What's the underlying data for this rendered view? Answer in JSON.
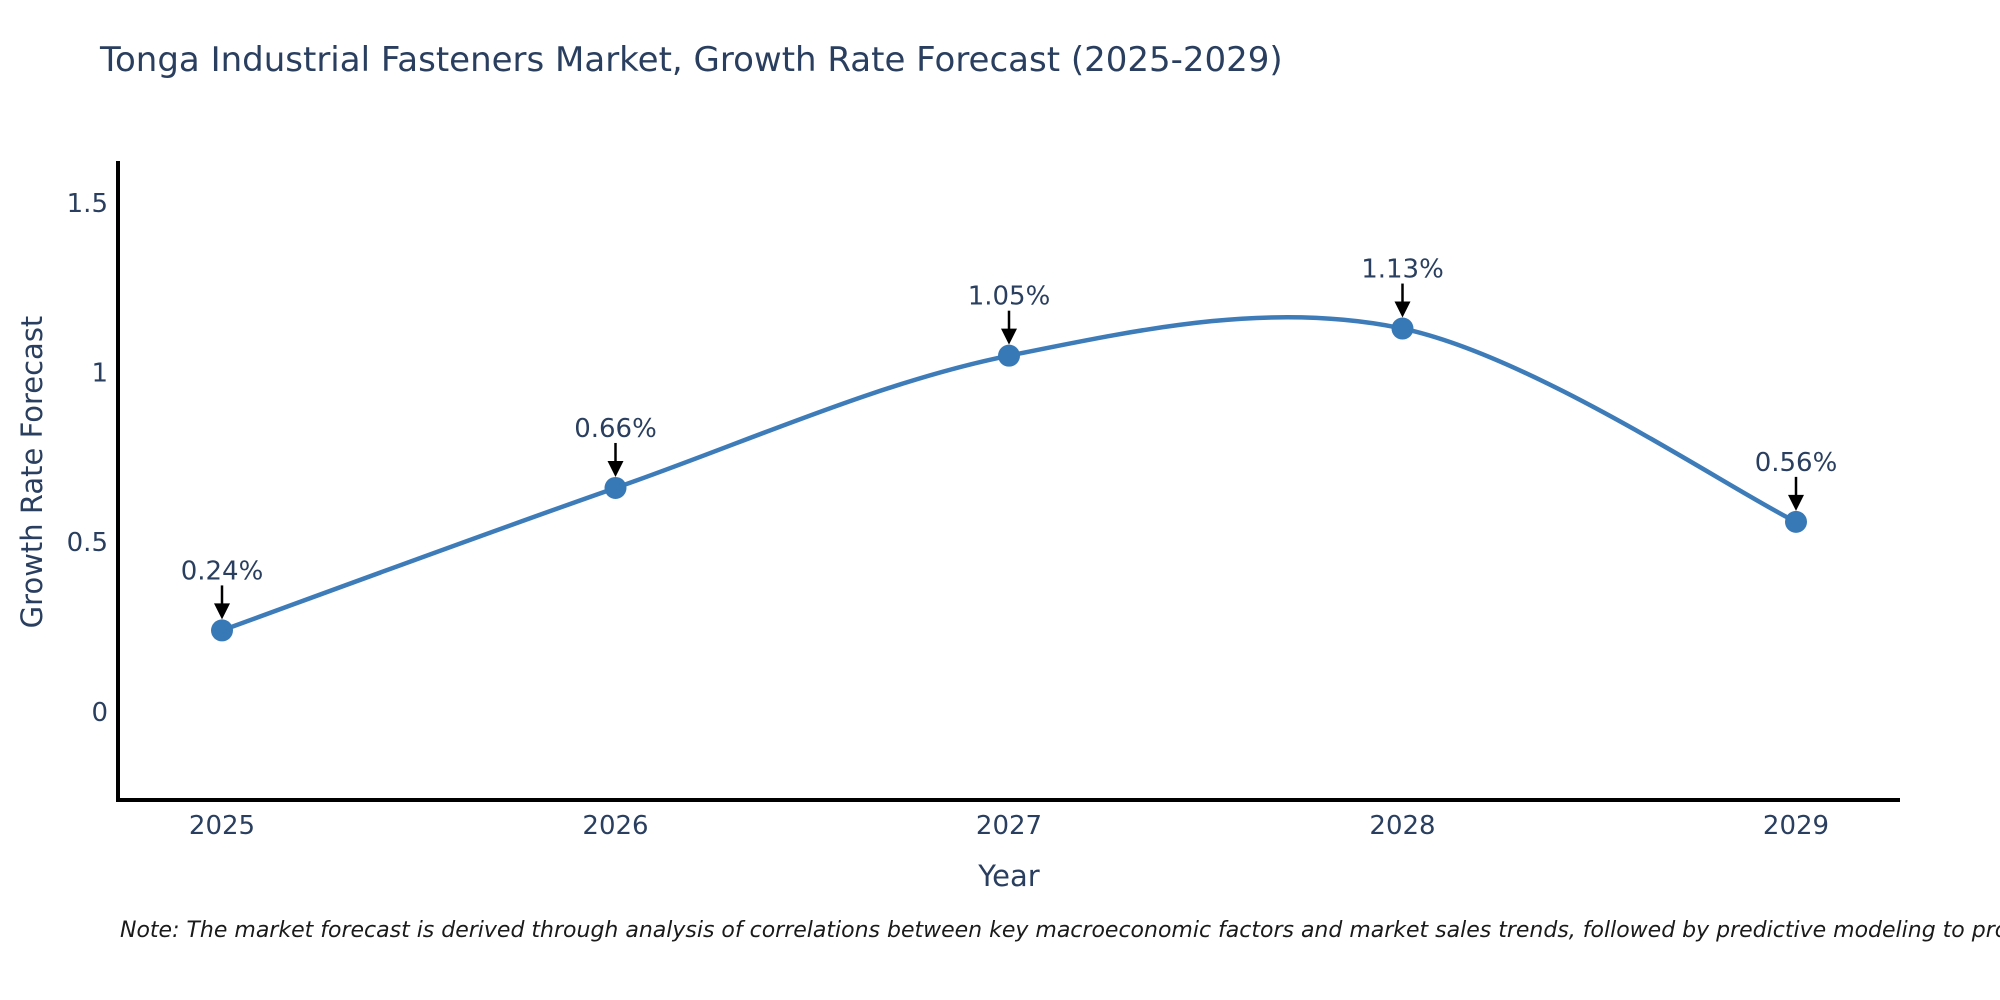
{
  "chart_data": {
    "type": "line",
    "title": "Tonga Industrial Fasteners Market, Growth Rate Forecast (2025-2029)",
    "xlabel": "Year",
    "ylabel": "Growth Rate Forecast",
    "x": [
      2025,
      2026,
      2027,
      2028,
      2029
    ],
    "values": [
      0.24,
      0.66,
      1.05,
      1.13,
      0.56
    ],
    "point_labels": [
      "0.24%",
      "0.66%",
      "1.05%",
      "1.13%",
      "0.56%"
    ],
    "yticks": [
      0,
      0.5,
      1,
      1.5
    ],
    "ytick_labels": [
      "0",
      "0.5",
      "1",
      "1.5"
    ],
    "ylim": [
      -0.26,
      1.624
    ],
    "line_shape": "spline",
    "grid": false,
    "legend": "none",
    "colors": {
      "line": "#3d7cb8",
      "marker": "#3779b7",
      "axis": "#000000",
      "text": "#2a3f5f",
      "arrow": "#000000"
    }
  },
  "note": "Note: The market forecast is derived through analysis of correlations between key macroeconomic factors and market sales trends, followed by predictive modeling to project future sales. It accounts for historical market impacts, such as those from crises, wars, and pandemics."
}
